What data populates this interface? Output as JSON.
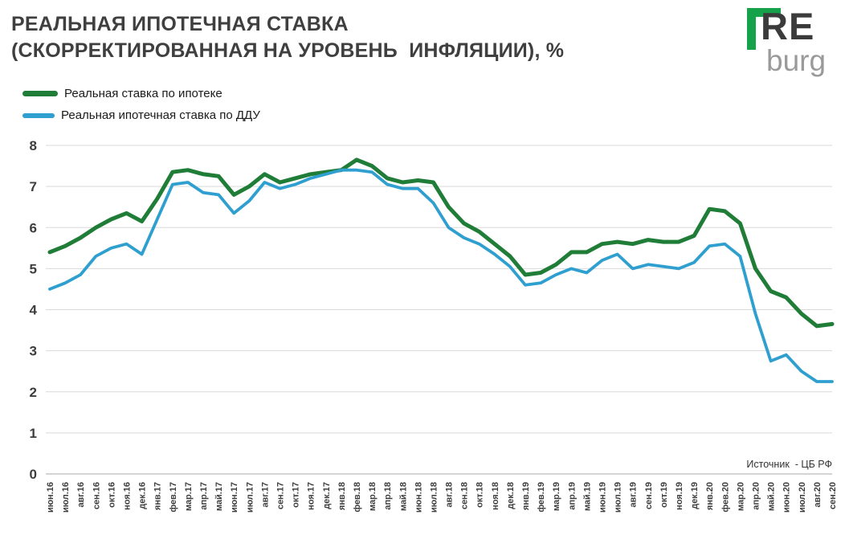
{
  "header": {
    "title_line1": "РЕАЛЬНАЯ ИПОТЕЧНАЯ СТАВКА",
    "title_line2": "(СКОРРЕКТИРОВАННАЯ НА УРОВЕНЬ  ИНФЛЯЦИИ), %"
  },
  "logo": {
    "line1": "RE",
    "line2": "burg",
    "accent_color": "#16a24b"
  },
  "footer": {
    "source": "Источник  - ЦБ РФ"
  },
  "chart_data": {
    "type": "line",
    "title": "РЕАЛЬНАЯ ИПОТЕЧНАЯ СТАВКА (СКОРРЕКТИРОВАННАЯ НА УРОВЕНЬ ИНФЛЯЦИИ), %",
    "xlabel": "",
    "ylabel": "",
    "ylim": [
      0,
      8
    ],
    "yticks": [
      0,
      1,
      2,
      3,
      4,
      5,
      6,
      7,
      8
    ],
    "grid": true,
    "legend_position": "top-left",
    "colors": {
      "mortgage": "#1f7d38",
      "ddu": "#2f9fd0"
    },
    "categories": [
      "июн.16",
      "июл.16",
      "авг.16",
      "сен.16",
      "окт.16",
      "ноя.16",
      "дек.16",
      "янв.17",
      "фев.17",
      "мар.17",
      "апр.17",
      "май.17",
      "июн.17",
      "июл.17",
      "авг.17",
      "сен.17",
      "окт.17",
      "ноя.17",
      "дек.17",
      "янв.18",
      "фев.18",
      "мар.18",
      "апр.18",
      "май.18",
      "июн.18",
      "июл.18",
      "авг.18",
      "сен.18",
      "окт.18",
      "ноя.18",
      "дек.18",
      "янв.19",
      "фев.19",
      "мар.19",
      "апр.19",
      "май.19",
      "июн.19",
      "июл.19",
      "авг.19",
      "сен.19",
      "окт.19",
      "ноя.19",
      "дек.19",
      "янв.20",
      "фев.20",
      "мар.20",
      "апр.20",
      "май.20",
      "июн.20",
      "июл.20",
      "авг.20",
      "сен.20"
    ],
    "series": [
      {
        "name": "Реальная ставка по ипотеке",
        "color_key": "mortgage",
        "stroke_width": 5,
        "values": [
          5.4,
          5.55,
          5.75,
          6.0,
          6.2,
          6.35,
          6.15,
          6.7,
          7.35,
          7.4,
          7.3,
          7.25,
          6.8,
          7.0,
          7.3,
          7.1,
          7.2,
          7.3,
          7.35,
          7.4,
          7.65,
          7.5,
          7.2,
          7.1,
          7.15,
          7.1,
          6.5,
          6.1,
          5.9,
          5.6,
          5.3,
          4.85,
          4.9,
          5.1,
          5.4,
          5.4,
          5.6,
          5.65,
          5.6,
          5.7,
          5.65,
          5.65,
          5.8,
          6.45,
          6.4,
          6.1,
          5.0,
          4.45,
          4.3,
          3.9,
          3.6,
          3.65
        ]
      },
      {
        "name": "Реальная ипотечная ставка по ДДУ",
        "color_key": "ddu",
        "stroke_width": 3.8,
        "values": [
          4.5,
          4.65,
          4.85,
          5.3,
          5.5,
          5.6,
          5.35,
          6.2,
          7.05,
          7.1,
          6.85,
          6.8,
          6.35,
          6.65,
          7.1,
          6.95,
          7.05,
          7.2,
          7.3,
          7.4,
          7.4,
          7.35,
          7.05,
          6.95,
          6.95,
          6.6,
          6.0,
          5.75,
          5.6,
          5.35,
          5.05,
          4.6,
          4.65,
          4.85,
          5.0,
          4.9,
          5.2,
          5.35,
          5.0,
          5.1,
          5.05,
          5.0,
          5.15,
          5.55,
          5.6,
          5.3,
          3.9,
          2.75,
          2.9,
          2.5,
          2.25,
          2.25
        ]
      }
    ]
  }
}
